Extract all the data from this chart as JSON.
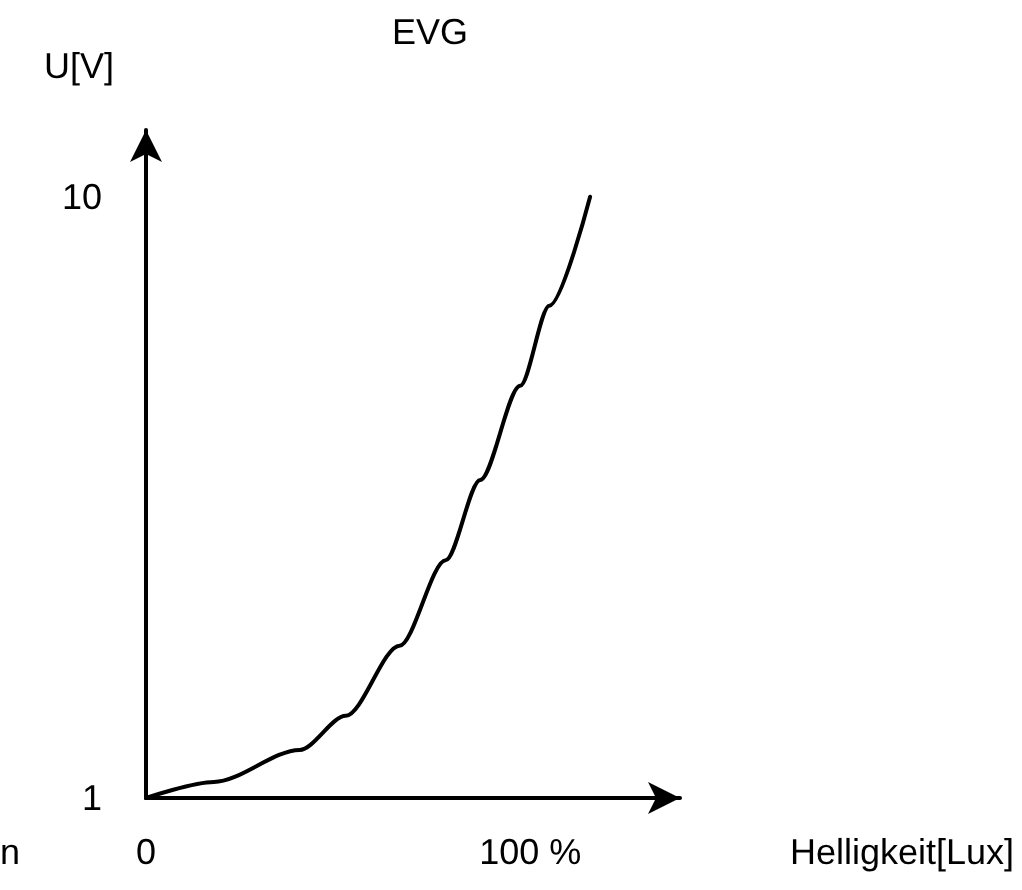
{
  "chart_data": {
    "type": "line",
    "title": "EVG",
    "xlabel": "Helligkeit[Lux]",
    "ylabel": "U[V]",
    "annotations": [
      "n"
    ],
    "x": [
      0,
      17.7,
      40,
      52,
      66,
      78,
      87,
      97.4,
      105,
      115.6
    ],
    "series": [
      {
        "color": "#000000",
        "values": [
          1,
          1.24,
          1.72,
          2.23,
          3.28,
          4.56,
          5.76,
          7.17,
          8.37,
          10
        ]
      }
    ],
    "xlim": [
      0,
      139
    ],
    "ylim": [
      1,
      11
    ],
    "xticks": [
      0,
      {
        "value": 100,
        "label": "100 %"
      }
    ],
    "yticks": [
      1,
      10
    ],
    "grid": false,
    "marker": "none",
    "line_style": "solid"
  }
}
